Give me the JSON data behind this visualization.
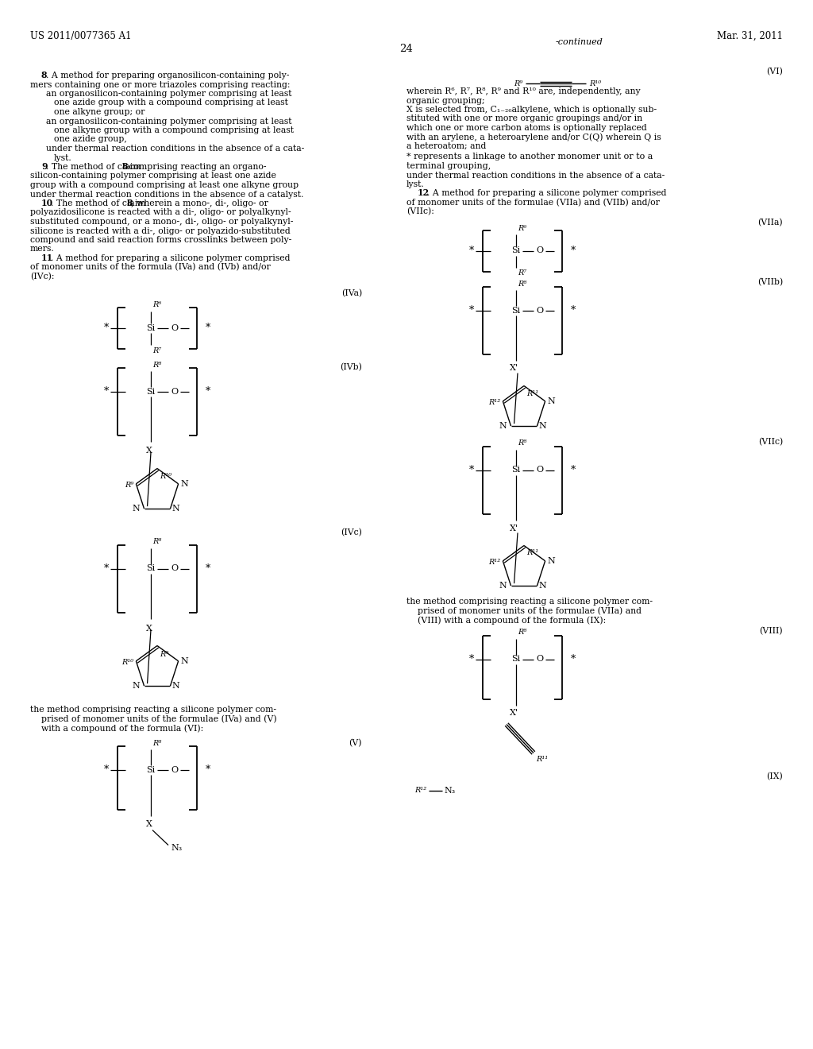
{
  "background_color": "#ffffff",
  "header_left": "US 2011/0077365 A1",
  "header_right": "Mar. 31, 2011",
  "page_number": "24"
}
